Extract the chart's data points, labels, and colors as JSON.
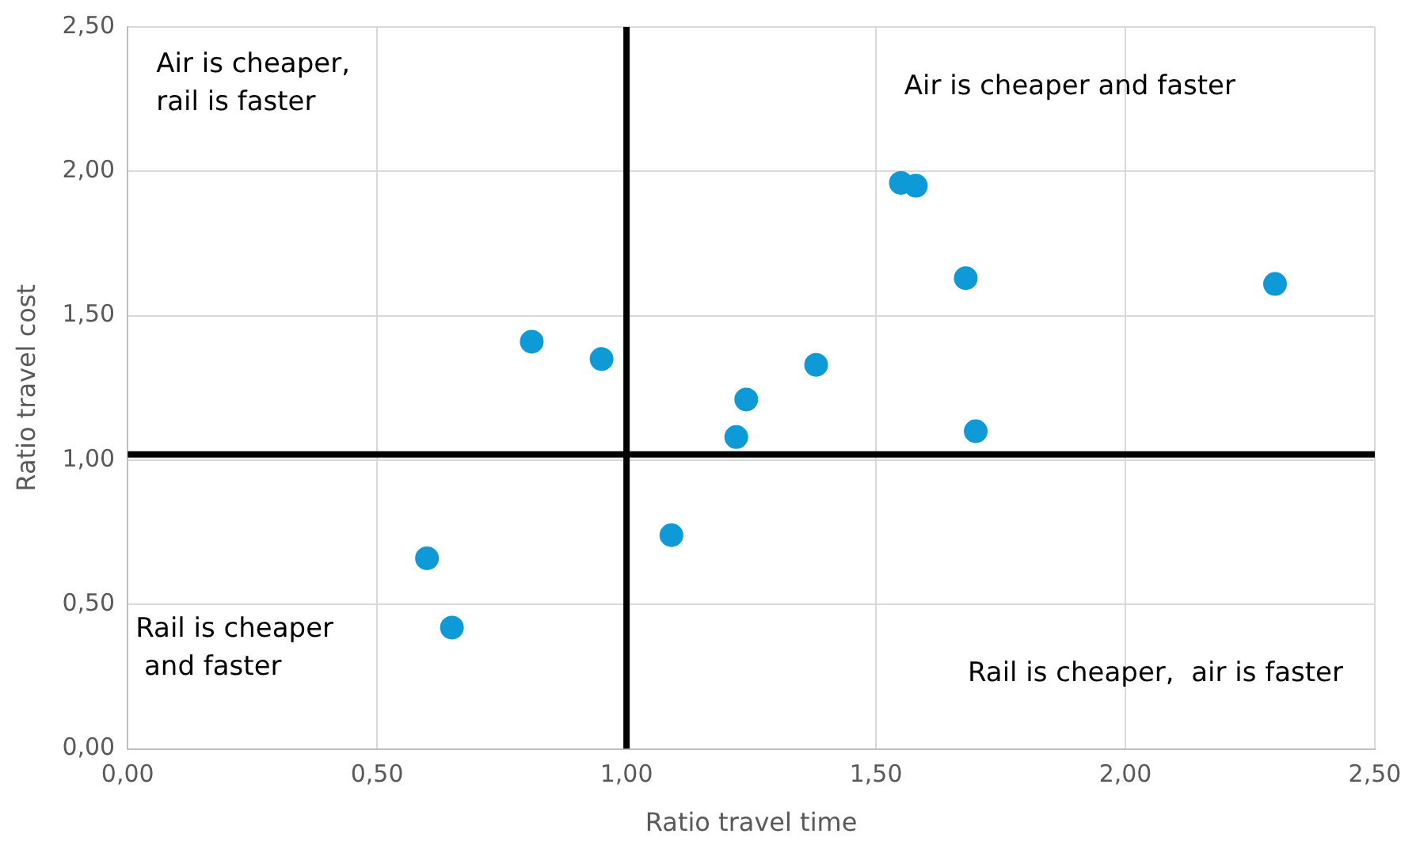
{
  "chart_data": {
    "type": "scatter",
    "xlabel": "Ratio travel time",
    "ylabel": "Ratio travel cost",
    "x": [
      0.81,
      0.95,
      0.6,
      0.65,
      1.09,
      1.22,
      1.24,
      1.38,
      1.55,
      1.58,
      1.68,
      1.7,
      2.3
    ],
    "series": [
      {
        "color": "#0e9ad7",
        "values": [
          1.41,
          1.35,
          0.66,
          0.42,
          0.74,
          1.08,
          1.21,
          1.33,
          1.96,
          1.95,
          1.63,
          1.1,
          1.61
        ]
      }
    ],
    "xlim": [
      0,
      2.5
    ],
    "ylim": [
      0,
      2.5
    ],
    "xticks": [
      {
        "value": 0,
        "label": "0,00"
      },
      {
        "value": 0.5,
        "label": "0,50"
      },
      {
        "value": 1,
        "label": "1,00"
      },
      {
        "value": 1.5,
        "label": "1,50"
      },
      {
        "value": 2,
        "label": "2,00"
      },
      {
        "value": 2.5,
        "label": "2,50"
      }
    ],
    "yticks": [
      {
        "value": 0,
        "label": "0,00"
      },
      {
        "value": 0.5,
        "label": "0,50"
      },
      {
        "value": 1,
        "label": "1,00"
      },
      {
        "value": 1.5,
        "label": "1,50"
      },
      {
        "value": 2,
        "label": "2,00"
      },
      {
        "value": 2.5,
        "label": "2,50"
      }
    ],
    "ref_lines": [
      {
        "axis": "x",
        "value": 1,
        "color": "#000000"
      },
      {
        "axis": "y",
        "value": 1.02,
        "color": "#000000"
      }
    ],
    "annotations": [
      "Air is cheaper,\nrail is faster",
      "Air is cheaper and faster",
      "Rail is cheaper\n and faster",
      "Rail is cheaper,  air is faster"
    ],
    "grid": true,
    "legend": false,
    "marker": "circle"
  }
}
